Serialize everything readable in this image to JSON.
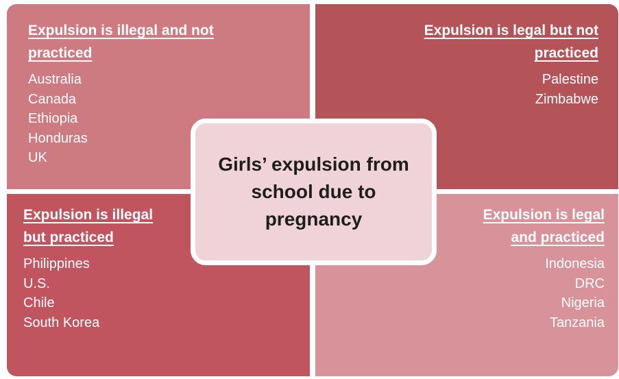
{
  "center": {
    "title": "Girls’ expulsion from school due to pregnancy"
  },
  "quadrants": [
    {
      "heading": "Expulsion is illegal and not practiced",
      "items": [
        "Australia",
        "Canada",
        "Ethiopia",
        "Honduras",
        "UK"
      ]
    },
    {
      "heading": "Expulsion is legal but not practiced",
      "items": [
        "Palestine",
        "Zimbabwe"
      ]
    },
    {
      "heading": "Expulsion is illegal but practiced",
      "items": [
        "Philippines",
        "U.S.",
        "Chile",
        "South Korea"
      ]
    },
    {
      "heading": "Expulsion is legal and practiced",
      "items": [
        "Indonesia",
        "DRC",
        "Nigeria",
        "Tanzania"
      ]
    }
  ]
}
